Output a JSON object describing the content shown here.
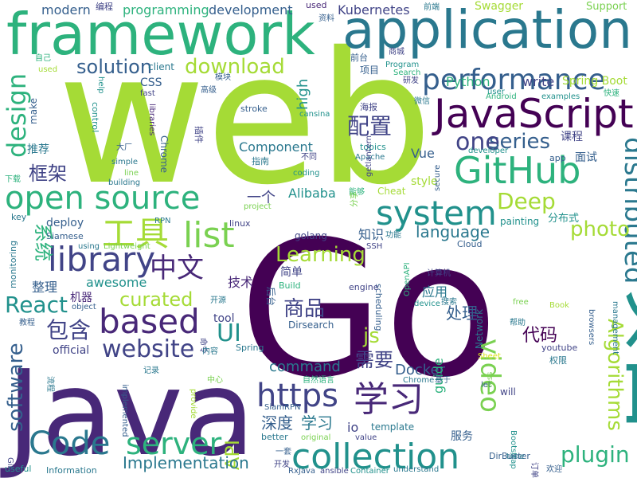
{
  "palette": {
    "background": "#ffffff",
    "lime": "#a5db36",
    "green": "#7ad151",
    "teal_green": "#2db27d",
    "teal": "#21918c",
    "blue_teal": "#2a788e",
    "blue": "#355f8d",
    "indigo": "#414487",
    "purple": "#482878",
    "dark_purple": "#440154",
    "yellow": "#d8e219"
  },
  "words": {
    "web": "web",
    "go": "Go",
    "java": "Java",
    "big_cn": "项目",
    "framework": "framework",
    "application": "application",
    "javascript": "JavaScript",
    "github": "GitHub",
    "open_source": "open source",
    "performance": "performance",
    "system": "system",
    "library": "library",
    "code": "Code",
    "collection": "collection",
    "https": "https",
    "website": "website",
    "based": "based",
    "server": "server",
    "list": "list",
    "distributed": "distributed",
    "design": "design",
    "deep": "Deep",
    "series": "series",
    "one": "one",
    "plugin": "plugin",
    "video": "video",
    "algorithms": "Algorithms",
    "react": "React",
    "learning": "Learning",
    "download": "download",
    "solution": "solution",
    "photo": "photo",
    "language": "language",
    "software": "software",
    "ui": "UI",
    "api": "API",
    "implementation": "Implementation",
    "curated": "curated",
    "command": "command",
    "docker": "Docker",
    "guide": "guide",
    "js": "js",
    "gongju": "工具",
    "zhongwen": "中文",
    "peizhi": "配置",
    "xuexi": "学习",
    "shangpin": "商品",
    "baohan": "包含",
    "xuyao": "需要",
    "kuangjia": "框架",
    "xitong": "系统",
    "chuli": "处理",
    "shendu": "深度",
    "xuexi2": "学习",
    "jishu": "技术",
    "daima": "代码",
    "yingyong": "应用",
    "zhishi": "知识",
    "jiandan": "简单",
    "zhengli": "整理",
    "tuijian": "推荐",
    "yige": "一个",
    "jiqi": "机器",
    "fenbushi": "分布式",
    "kecheng": "课程",
    "mianshi": "面试",
    "fuwu": "服务",
    "modern": "modern",
    "programming": "programming",
    "development": "development",
    "kubernetes": "Kubernetes",
    "swagger": "Swagger",
    "support": "Support",
    "spring_boot": "Spring Boot",
    "python": "Python",
    "write": "write",
    "high": "high",
    "css": "CSS",
    "make": "make",
    "component": "Component",
    "vue": "Vue",
    "alibaba": "Alibaba",
    "style": "style",
    "cheat": "Cheat",
    "deploy": "deploy",
    "awesome": "awesome",
    "tool": "tool",
    "official": "official",
    "spring": "Spring",
    "youtube": "youtube",
    "network": "Network",
    "scheduling": "scheduling",
    "chrome": "Chrome",
    "chrome2": "Chrome",
    "stroke": "stroke",
    "topics": "topics",
    "apache": "Apache",
    "app": "app",
    "developer": "developer",
    "examples": "examples",
    "linux": "linux",
    "golang": "golang",
    "ssh": "SSH",
    "siamese": "Siamese",
    "lightweight": "Lightweight",
    "rpn": "RPN",
    "using": "using",
    "monitoring": "monitoring",
    "key": "key",
    "object": "object",
    "build": "Build",
    "dirsearch": "Dirsearch",
    "engine": "engine",
    "getlantern": "getlantern",
    "openapi": "OpenAPI",
    "device": "device",
    "free": "free",
    "book": "Book",
    "browsers": "browsers",
    "management": "management",
    "let": "let",
    "less": "less",
    "will": "will",
    "sheet": "Sheet",
    "dirbuster": "DirBuster",
    "time": "time",
    "bootstrap": "Bootstrap",
    "template": "template",
    "io": "io",
    "value": "value",
    "understand": "understand",
    "container": "Container",
    "ansible": "ansible",
    "rxjava": "RxJava",
    "siamrpn": "SiamRPN",
    "better": "better",
    "original": "original",
    "secure": "secure",
    "implemented": "implemented",
    "provide": "provide",
    "useful": "useful",
    "information": "Information",
    "gin": "Gin",
    "used": "used",
    "program": "Program",
    "search": "Search",
    "client": "client",
    "help": "help",
    "control": "control",
    "fast": "fast",
    "libraries": "libraries",
    "simple": "simple",
    "building": "building",
    "line": "line",
    "project": "project",
    "coding": "coding",
    "cansina": "cansina",
    "android": "Android",
    "user": "user",
    "cloud": "Cloud",
    "biancheng": "编程",
    "ziliao": "资料",
    "qianduan": "前端",
    "shangcheng": "商城",
    "qiantai": "前台",
    "ziji": "自己",
    "mokuai": "模块",
    "gaoji": "高级",
    "haibao": "海报",
    "weixin": "微信",
    "kuaisu": "快速",
    "yanfa": "研发",
    "dachang": "大厂",
    "chajian": "插件",
    "zhinan": "指南",
    "butong": "不同",
    "xiazai": "下载",
    "nengyu": "能够",
    "gongneng": "功能",
    "fenxiang": "分享",
    "houtai": "后台",
    "kaiyuan": "开源",
    "jisuanji": "计算机",
    "sousuo": "搜索",
    "bangzhu": "帮助",
    "quanxian": "权限",
    "jiaocheng": "教程",
    "mingling": "命令",
    "neirong": "内容",
    "jilu": "记录",
    "zhongxin": "中心",
    "liucheng": "流程",
    "ziranyuyan": "自然语言",
    "jiyu": "基于",
    "kaifa": "开发",
    "yiqie": "一套",
    "dingdan": "订单",
    "huanying": "欢迎",
    "painting": "painting"
  }
}
